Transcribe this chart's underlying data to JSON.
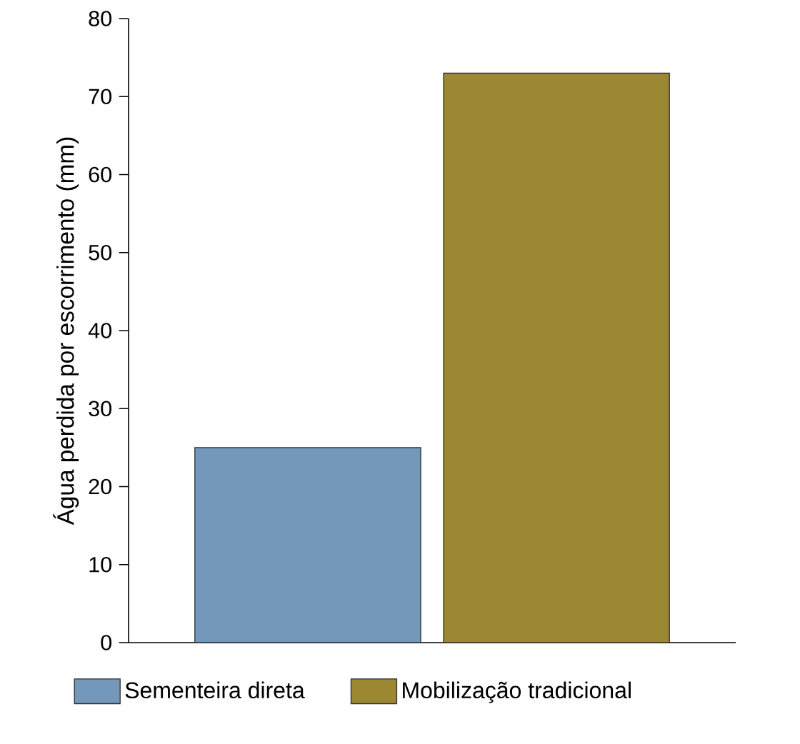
{
  "chart_data": {
    "type": "bar",
    "ylabel": "Água perdida por escorrimento (mm)",
    "categories": [
      null
    ],
    "series": [
      {
        "name": "Sementeira direta",
        "color": "#7398bb",
        "values": [
          25
        ]
      },
      {
        "name": "Mobilização tradicional",
        "color": "#9c8733",
        "values": [
          73
        ]
      }
    ],
    "ylim": [
      0,
      80
    ],
    "yticks": [
      0,
      10,
      20,
      30,
      40,
      50,
      60,
      70,
      80
    ],
    "legend": "bottom",
    "grid": false
  }
}
